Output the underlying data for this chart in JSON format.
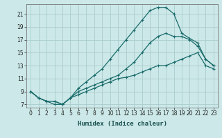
{
  "xlabel": "Humidex (Indice chaleur)",
  "bg_color": "#cce8e8",
  "grid_color": "#aacccc",
  "line_color": "#1a6b6b",
  "xlim": [
    -0.5,
    23.5
  ],
  "ylim": [
    6.5,
    22.5
  ],
  "xticks": [
    0,
    1,
    2,
    3,
    4,
    5,
    6,
    7,
    8,
    9,
    10,
    11,
    12,
    13,
    14,
    15,
    16,
    17,
    18,
    19,
    20,
    21,
    22,
    23
  ],
  "yticks": [
    7,
    9,
    11,
    13,
    15,
    17,
    19,
    21
  ],
  "line1_x": [
    0,
    1,
    2,
    3,
    4,
    5,
    6,
    7,
    8,
    9,
    10,
    11,
    12,
    13,
    14,
    15,
    16,
    17,
    18,
    19,
    20,
    21,
    22,
    23
  ],
  "line1_y": [
    9,
    8,
    7.5,
    7,
    7,
    8,
    8.5,
    9,
    9.5,
    10,
    10.5,
    11,
    11.2,
    11.5,
    12,
    12.5,
    13,
    13,
    13.5,
    14,
    14.5,
    15,
    13,
    12.5
  ],
  "line2_x": [
    0,
    1,
    2,
    3,
    4,
    5,
    6,
    7,
    8,
    9,
    10,
    11,
    12,
    13,
    14,
    15,
    16,
    17,
    18,
    19,
    20,
    21,
    22,
    23
  ],
  "line2_y": [
    9,
    8,
    7.5,
    7.5,
    7,
    8,
    9,
    9.5,
    10,
    10.5,
    11,
    11.5,
    12.5,
    13.5,
    15,
    16.5,
    17.5,
    18,
    17.5,
    17.5,
    17,
    16,
    14,
    13
  ],
  "line3_x": [
    0,
    1,
    2,
    3,
    4,
    5,
    6,
    7,
    8,
    9,
    10,
    11,
    12,
    13,
    14,
    15,
    16,
    17,
    18,
    19,
    20,
    21,
    22,
    23
  ],
  "line3_y": [
    9,
    8,
    7.5,
    7.5,
    7,
    8,
    9.5,
    10.5,
    11.5,
    12.5,
    14,
    15.5,
    17,
    18.5,
    20,
    21.5,
    22,
    22,
    21,
    18,
    17.2,
    16.5,
    14,
    13
  ],
  "marker": "+",
  "markersize": 3.5,
  "markeredgewidth": 0.8,
  "linewidth": 0.9,
  "tick_labelsize": 5.5,
  "xlabel_fontsize": 6.5
}
